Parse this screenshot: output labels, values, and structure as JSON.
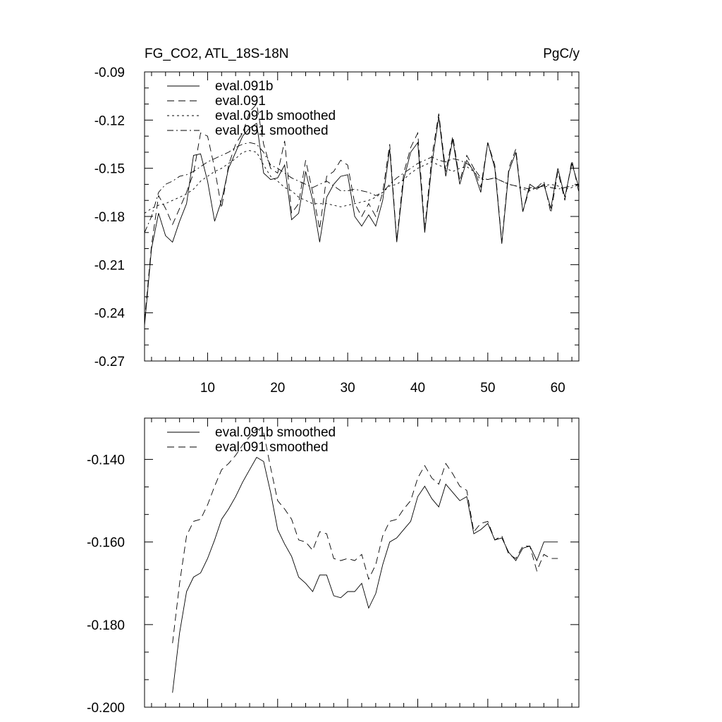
{
  "chart_data": [
    {
      "type": "line",
      "title": "FG_CO2, ATL_18S-18N",
      "units": "PgC/y",
      "xlabel": "",
      "ylabel": "",
      "xlim": [
        1,
        63
      ],
      "ylim": [
        -0.27,
        -0.09
      ],
      "xticks": [
        10,
        20,
        30,
        40,
        50,
        60
      ],
      "yticks": [
        -0.09,
        -0.12,
        -0.15,
        -0.18,
        -0.21,
        -0.24,
        -0.27
      ],
      "ytick_labels": [
        "-0.09",
        "-0.12",
        "-0.15",
        "-0.18",
        "-0.21",
        "-0.24",
        "-0.27"
      ],
      "grid": false,
      "legend_position": "top-left",
      "series": [
        {
          "name": "eval.091b",
          "style": "solid",
          "x": [
            1,
            2,
            3,
            4,
            5,
            6,
            7,
            8,
            9,
            10,
            11,
            12,
            13,
            14,
            15,
            16,
            17,
            18,
            19,
            20,
            21,
            22,
            23,
            24,
            25,
            26,
            27,
            28,
            29,
            30,
            31,
            32,
            33,
            34,
            35,
            36,
            37,
            38,
            39,
            40,
            41,
            42,
            43,
            44,
            45,
            46,
            47,
            48,
            49,
            50,
            51,
            52,
            53,
            54,
            55,
            56,
            57,
            58,
            59,
            60,
            61,
            62,
            63
          ],
          "values": [
            -0.248,
            -0.2,
            -0.178,
            -0.192,
            -0.196,
            -0.183,
            -0.172,
            -0.142,
            -0.141,
            -0.158,
            -0.183,
            -0.17,
            -0.15,
            -0.14,
            -0.13,
            -0.125,
            -0.122,
            -0.153,
            -0.157,
            -0.156,
            -0.148,
            -0.182,
            -0.178,
            -0.152,
            -0.17,
            -0.196,
            -0.168,
            -0.16,
            -0.155,
            -0.154,
            -0.18,
            -0.186,
            -0.179,
            -0.186,
            -0.17,
            -0.138,
            -0.196,
            -0.157,
            -0.14,
            -0.134,
            -0.19,
            -0.148,
            -0.118,
            -0.155,
            -0.132,
            -0.16,
            -0.145,
            -0.152,
            -0.165,
            -0.134,
            -0.15,
            -0.197,
            -0.152,
            -0.14,
            -0.177,
            -0.16,
            -0.163,
            -0.16,
            -0.175,
            -0.15,
            -0.168,
            -0.147,
            -0.162
          ]
        },
        {
          "name": "eval.091",
          "style": "dashed",
          "x": [
            1,
            2,
            3,
            4,
            5,
            6,
            7,
            8,
            9,
            10,
            11,
            12,
            13,
            14,
            15,
            16,
            17,
            18,
            19,
            20,
            21,
            22,
            23,
            24,
            25,
            26,
            27,
            28,
            29,
            30,
            31,
            32,
            33,
            34,
            35,
            36,
            37,
            38,
            39,
            40,
            41,
            42,
            43,
            44,
            45,
            46,
            47,
            48,
            49,
            50,
            51,
            52,
            53,
            54,
            55,
            56,
            57,
            58,
            59,
            60,
            61,
            62,
            63
          ],
          "values": [
            -0.245,
            -0.198,
            -0.167,
            -0.175,
            -0.185,
            -0.175,
            -0.165,
            -0.153,
            -0.128,
            -0.13,
            -0.15,
            -0.175,
            -0.148,
            -0.135,
            -0.128,
            -0.115,
            -0.11,
            -0.135,
            -0.15,
            -0.153,
            -0.133,
            -0.178,
            -0.172,
            -0.145,
            -0.165,
            -0.188,
            -0.155,
            -0.152,
            -0.145,
            -0.148,
            -0.172,
            -0.18,
            -0.172,
            -0.18,
            -0.165,
            -0.135,
            -0.195,
            -0.153,
            -0.137,
            -0.128,
            -0.188,
            -0.143,
            -0.116,
            -0.152,
            -0.13,
            -0.158,
            -0.142,
            -0.15,
            -0.162,
            -0.134,
            -0.148,
            -0.196,
            -0.15,
            -0.138,
            -0.177,
            -0.162,
            -0.162,
            -0.158,
            -0.178,
            -0.152,
            -0.17,
            -0.145,
            -0.165
          ]
        },
        {
          "name": "eval.091b smoothed",
          "style": "dotted",
          "x": [
            1,
            2,
            3,
            4,
            5,
            6,
            7,
            8,
            9,
            10,
            11,
            12,
            13,
            14,
            15,
            16,
            17,
            18,
            19,
            20,
            21,
            22,
            23,
            24,
            25,
            26,
            27,
            28,
            29,
            30,
            31,
            32,
            33,
            34,
            35,
            36,
            37,
            38,
            39,
            40,
            41,
            42,
            43,
            44,
            45,
            46,
            47,
            48,
            49,
            50,
            51,
            52,
            53,
            54,
            55,
            56,
            57,
            58,
            59,
            60,
            61,
            62,
            63
          ],
          "values": [
            -0.178,
            -0.175,
            -0.173,
            -0.172,
            -0.17,
            -0.168,
            -0.166,
            -0.163,
            -0.158,
            -0.155,
            -0.152,
            -0.15,
            -0.147,
            -0.144,
            -0.14,
            -0.139,
            -0.14,
            -0.148,
            -0.155,
            -0.158,
            -0.162,
            -0.164,
            -0.168,
            -0.17,
            -0.172,
            -0.172,
            -0.172,
            -0.173,
            -0.174,
            -0.173,
            -0.172,
            -0.171,
            -0.17,
            -0.168,
            -0.165,
            -0.161,
            -0.16,
            -0.157,
            -0.153,
            -0.15,
            -0.148,
            -0.146,
            -0.148,
            -0.15,
            -0.152,
            -0.15,
            -0.149,
            -0.152,
            -0.157,
            -0.157,
            -0.156,
            -0.158,
            -0.16,
            -0.161,
            -0.163,
            -0.164,
            -0.162,
            -0.161,
            -0.16,
            -0.161,
            -0.163,
            -0.162,
            -0.16
          ]
        },
        {
          "name": "eval.091 smoothed",
          "style": "dashdot",
          "x": [
            1,
            2,
            3,
            4,
            5,
            6,
            7,
            8,
            9,
            10,
            11,
            12,
            13,
            14,
            15,
            16,
            17,
            18,
            19,
            20,
            21,
            22,
            23,
            24,
            25,
            26,
            27,
            28,
            29,
            30,
            31,
            32,
            33,
            34,
            35,
            36,
            37,
            38,
            39,
            40,
            41,
            42,
            43,
            44,
            45,
            46,
            47,
            48,
            49,
            50,
            51,
            52,
            53,
            54,
            55,
            56,
            57,
            58,
            59,
            60,
            61,
            62,
            63
          ],
          "values": [
            -0.19,
            -0.18,
            -0.165,
            -0.16,
            -0.158,
            -0.155,
            -0.154,
            -0.152,
            -0.149,
            -0.146,
            -0.144,
            -0.142,
            -0.14,
            -0.137,
            -0.135,
            -0.134,
            -0.135,
            -0.14,
            -0.148,
            -0.15,
            -0.153,
            -0.156,
            -0.158,
            -0.16,
            -0.162,
            -0.16,
            -0.158,
            -0.161,
            -0.164,
            -0.164,
            -0.163,
            -0.164,
            -0.165,
            -0.167,
            -0.165,
            -0.16,
            -0.156,
            -0.153,
            -0.15,
            -0.147,
            -0.145,
            -0.143,
            -0.145,
            -0.146,
            -0.144,
            -0.145,
            -0.147,
            -0.15,
            -0.156,
            -0.157,
            -0.156,
            -0.158,
            -0.16,
            -0.161,
            -0.162,
            -0.163,
            -0.162,
            -0.161,
            -0.162,
            -0.163,
            -0.162,
            -0.161,
            -0.16
          ]
        }
      ]
    },
    {
      "type": "line",
      "title": "",
      "xlabel": "",
      "ylabel": "",
      "xlim": [
        1,
        63
      ],
      "ylim": [
        -0.2,
        -0.13
      ],
      "xticks": [
        10,
        20,
        30,
        40,
        50,
        60
      ],
      "yticks": [
        -0.14,
        -0.16,
        -0.18,
        -0.2
      ],
      "ytick_labels": [
        "-0.140",
        "-0.160",
        "-0.180",
        "-0.200"
      ],
      "grid": false,
      "legend_position": "top-left",
      "series": [
        {
          "name": "eval.091b smoothed",
          "style": "solid",
          "x": [
            5,
            6,
            7,
            8,
            9,
            10,
            11,
            12,
            13,
            14,
            15,
            16,
            17,
            18,
            19,
            20,
            21,
            22,
            23,
            24,
            25,
            26,
            27,
            28,
            29,
            30,
            31,
            32,
            33,
            34,
            35,
            36,
            37,
            38,
            39,
            40,
            41,
            42,
            43,
            44,
            45,
            46,
            47,
            48,
            49,
            50,
            51,
            52,
            53,
            54,
            55,
            56,
            57,
            58,
            59,
            60
          ],
          "values": [
            -0.1965,
            -0.182,
            -0.172,
            -0.1685,
            -0.1675,
            -0.164,
            -0.1595,
            -0.1545,
            -0.152,
            -0.149,
            -0.1455,
            -0.1425,
            -0.1395,
            -0.1405,
            -0.148,
            -0.157,
            -0.1605,
            -0.1635,
            -0.1685,
            -0.17,
            -0.172,
            -0.168,
            -0.168,
            -0.173,
            -0.1735,
            -0.172,
            -0.172,
            -0.17,
            -0.176,
            -0.1725,
            -0.1655,
            -0.16,
            -0.159,
            -0.157,
            -0.155,
            -0.149,
            -0.1465,
            -0.1495,
            -0.1515,
            -0.146,
            -0.148,
            -0.15,
            -0.149,
            -0.158,
            -0.157,
            -0.1555,
            -0.1595,
            -0.159,
            -0.1625,
            -0.1645,
            -0.1615,
            -0.161,
            -0.1645,
            -0.16,
            -0.16,
            -0.16
          ]
        },
        {
          "name": "eval.091 smoothed",
          "style": "dashed",
          "x": [
            5,
            6,
            7,
            8,
            9,
            10,
            11,
            12,
            13,
            14,
            15,
            16,
            17,
            18,
            19,
            20,
            21,
            22,
            23,
            24,
            25,
            26,
            27,
            28,
            29,
            30,
            31,
            32,
            33,
            34,
            35,
            36,
            37,
            38,
            39,
            40,
            41,
            42,
            43,
            44,
            45,
            46,
            47,
            48,
            49,
            50,
            51,
            52,
            53,
            54,
            55,
            56,
            57,
            58,
            59,
            60
          ],
          "values": [
            -0.1845,
            -0.17,
            -0.1585,
            -0.155,
            -0.1545,
            -0.151,
            -0.1465,
            -0.1425,
            -0.141,
            -0.139,
            -0.1365,
            -0.1345,
            -0.1325,
            -0.1335,
            -0.142,
            -0.15,
            -0.152,
            -0.1545,
            -0.1595,
            -0.16,
            -0.162,
            -0.1575,
            -0.158,
            -0.164,
            -0.1645,
            -0.164,
            -0.1645,
            -0.163,
            -0.169,
            -0.1655,
            -0.1585,
            -0.155,
            -0.1545,
            -0.152,
            -0.15,
            -0.1445,
            -0.1415,
            -0.1445,
            -0.146,
            -0.141,
            -0.1435,
            -0.1465,
            -0.1475,
            -0.1575,
            -0.1555,
            -0.155,
            -0.1595,
            -0.1585,
            -0.163,
            -0.164,
            -0.161,
            -0.161,
            -0.167,
            -0.163,
            -0.164,
            -0.164
          ]
        }
      ]
    }
  ]
}
